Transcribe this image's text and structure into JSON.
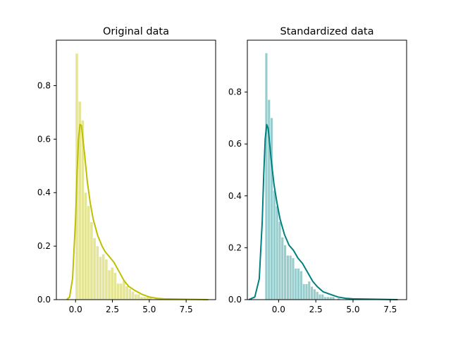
{
  "chart_data": [
    {
      "type": "bar",
      "title": "Original data",
      "xlabel": "",
      "ylabel": "",
      "xlim": [
        -1.3,
        9.5
      ],
      "ylim": [
        0,
        0.97
      ],
      "xticks": [
        0.0,
        2.5,
        5.0,
        7.5
      ],
      "xtick_labels": [
        "0.0",
        "2.5",
        "5.0",
        "7.5"
      ],
      "yticks": [
        0.0,
        0.2,
        0.4,
        0.6,
        0.8
      ],
      "ytick_labels": [
        "0.0",
        "0.2",
        "0.4",
        "0.6",
        "0.8"
      ],
      "hist_color": "#e5e597",
      "line_color": "#bfbf00",
      "bin_start": 0.0,
      "bin_width": 0.2,
      "hist_values": [
        0.92,
        0.74,
        0.67,
        0.4,
        0.35,
        0.29,
        0.23,
        0.2,
        0.16,
        0.17,
        0.15,
        0.11,
        0.12,
        0.1,
        0.06,
        0.06,
        0.07,
        0.05,
        0.04,
        0.03,
        0.02,
        0.02,
        0.01,
        0.01,
        0.01,
        0.01,
        0.0,
        0.005,
        0.0,
        0.0,
        0.005,
        0.0,
        0.0,
        0.0,
        0.0,
        0.003,
        0.0,
        0.0,
        0.0,
        0.0,
        0.0,
        0.0,
        0.002
      ],
      "kde": {
        "x": [
          -0.6,
          -0.4,
          -0.2,
          0.0,
          0.1,
          0.2,
          0.3,
          0.4,
          0.5,
          0.6,
          0.8,
          1.0,
          1.2,
          1.5,
          1.8,
          2.0,
          2.3,
          2.6,
          3.0,
          3.3,
          3.6,
          4.0,
          4.5,
          5.0,
          5.5,
          6.0,
          7.0,
          8.0,
          9.0
        ],
        "y": [
          0.0,
          0.01,
          0.08,
          0.3,
          0.47,
          0.6,
          0.655,
          0.65,
          0.6,
          0.55,
          0.44,
          0.36,
          0.3,
          0.24,
          0.2,
          0.18,
          0.16,
          0.14,
          0.1,
          0.07,
          0.05,
          0.035,
          0.02,
          0.01,
          0.005,
          0.003,
          0.002,
          0.001,
          0.0
        ]
      }
    },
    {
      "type": "bar",
      "title": "Standardized data",
      "xlabel": "",
      "ylabel": "",
      "xlim": [
        -2.1,
        8.6
      ],
      "ylim": [
        0,
        1.0
      ],
      "xticks": [
        0.0,
        2.5,
        5.0,
        7.5
      ],
      "xtick_labels": [
        "0.0",
        "2.5",
        "5.0",
        "7.5"
      ],
      "yticks": [
        0.0,
        0.2,
        0.4,
        0.6,
        0.8
      ],
      "ytick_labels": [
        "0.0",
        "0.2",
        "0.4",
        "0.6",
        "0.8"
      ],
      "hist_color": "#99cccc",
      "line_color": "#008080",
      "bin_start": -0.9,
      "bin_width": 0.18,
      "hist_values": [
        0.95,
        0.77,
        0.7,
        0.42,
        0.36,
        0.3,
        0.24,
        0.21,
        0.17,
        0.17,
        0.16,
        0.12,
        0.12,
        0.11,
        0.06,
        0.06,
        0.07,
        0.05,
        0.04,
        0.03,
        0.02,
        0.02,
        0.01,
        0.01,
        0.01,
        0.01,
        0.0,
        0.005,
        0.0,
        0.0,
        0.005,
        0.0,
        0.0,
        0.0,
        0.0,
        0.003,
        0.0,
        0.0,
        0.0,
        0.0,
        0.0,
        0.0,
        0.002
      ],
      "kde": {
        "x": [
          -2.0,
          -1.6,
          -1.3,
          -1.1,
          -1.0,
          -0.9,
          -0.8,
          -0.7,
          -0.6,
          -0.5,
          -0.3,
          -0.1,
          0.1,
          0.4,
          0.7,
          1.0,
          1.3,
          1.6,
          2.0,
          2.3,
          2.6,
          3.0,
          3.5,
          4.0,
          4.5,
          5.0,
          6.0,
          7.0,
          8.0
        ],
        "y": [
          0.0,
          0.01,
          0.08,
          0.3,
          0.48,
          0.62,
          0.675,
          0.66,
          0.6,
          0.54,
          0.44,
          0.37,
          0.31,
          0.25,
          0.21,
          0.19,
          0.16,
          0.14,
          0.1,
          0.07,
          0.05,
          0.03,
          0.02,
          0.01,
          0.005,
          0.003,
          0.002,
          0.001,
          0.0
        ]
      }
    }
  ]
}
